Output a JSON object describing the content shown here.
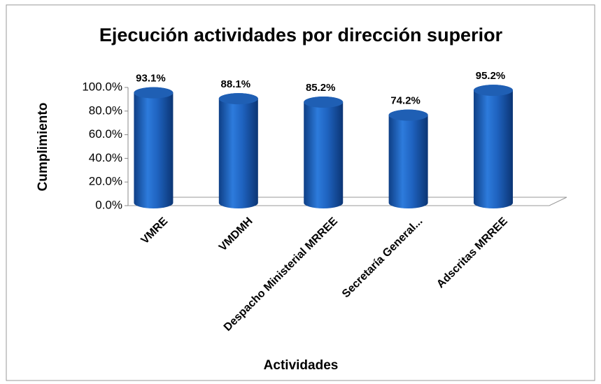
{
  "chart_data": {
    "type": "bar",
    "title": "Ejecución actividades por dirección superior",
    "x_label": "Actividades",
    "y_label": "Cumplimiento",
    "categories": [
      "VMRE",
      "VMDMH",
      "Despacho Ministerial MRREE",
      "Secretaría General...",
      "Adscritas MRREE"
    ],
    "values": [
      93.1,
      88.1,
      85.2,
      74.2,
      95.2
    ],
    "value_labels": [
      "93.1%",
      "88.1%",
      "85.2%",
      "74.2%",
      "95.2%"
    ],
    "color": "#1f5fb4",
    "ylim": [
      0,
      100
    ],
    "yticks": [
      {
        "value": 0,
        "label": "0.0%"
      },
      {
        "value": 20,
        "label": "20.0%"
      },
      {
        "value": 40,
        "label": "40.0%"
      },
      {
        "value": 60,
        "label": "60.0%"
      },
      {
        "value": 80,
        "label": "80.0%"
      },
      {
        "value": 100,
        "label": "100.0%"
      }
    ],
    "grid": false
  }
}
